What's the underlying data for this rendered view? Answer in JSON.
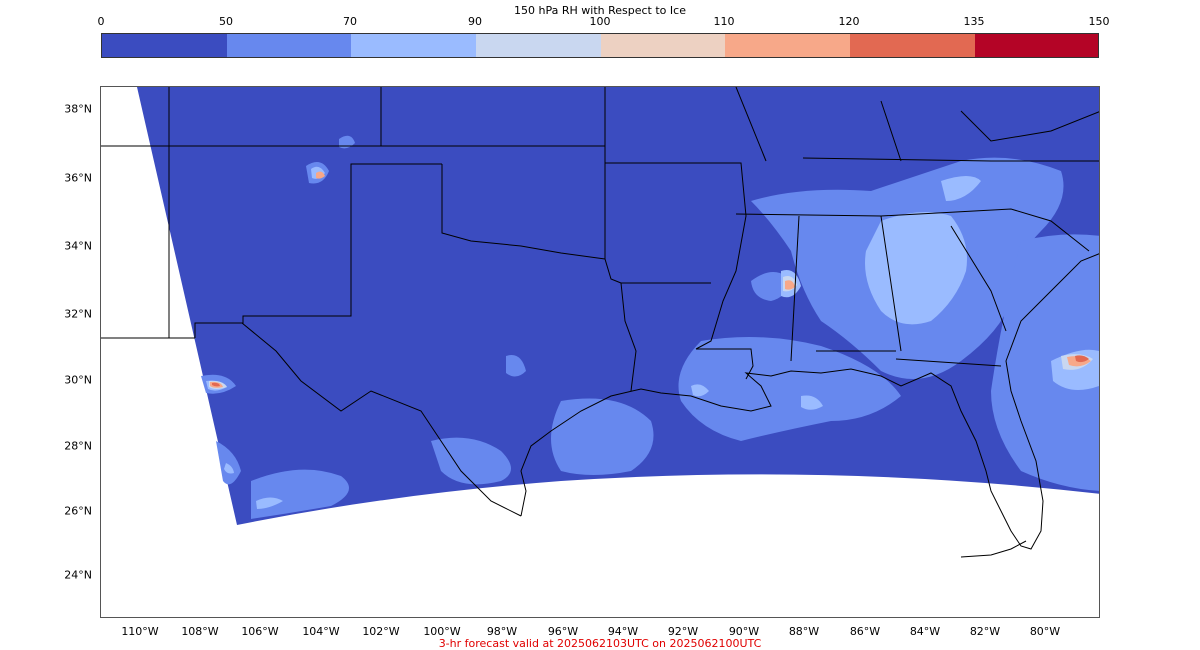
{
  "colorbar": {
    "title": "150 hPa RH with Respect to Ice",
    "ticks": [
      "0",
      "50",
      "70",
      "90",
      "100",
      "110",
      "120",
      "135",
      "150"
    ],
    "colors": [
      "#3b4cc0",
      "#6788ee",
      "#9abbff",
      "#c9d7f0",
      "#edd1c2",
      "#f7a889",
      "#e26952",
      "#b40426"
    ]
  },
  "map": {
    "lat_labels": [
      "38°N",
      "36°N",
      "34°N",
      "32°N",
      "30°N",
      "28°N",
      "26°N",
      "24°N"
    ],
    "lon_labels": [
      "110°W",
      "108°W",
      "106°W",
      "104°W",
      "102°W",
      "100°W",
      "98°W",
      "96°W",
      "94°W",
      "92°W",
      "90°W",
      "88°W",
      "86°W",
      "84°W",
      "82°W",
      "80°W"
    ],
    "background_color": "#3b4cc0",
    "boundary_color": "#000000"
  },
  "footer": {
    "text": "3-hr forecast valid at 2025062103UTC on 2025062100UTC",
    "color": "#e00000"
  }
}
